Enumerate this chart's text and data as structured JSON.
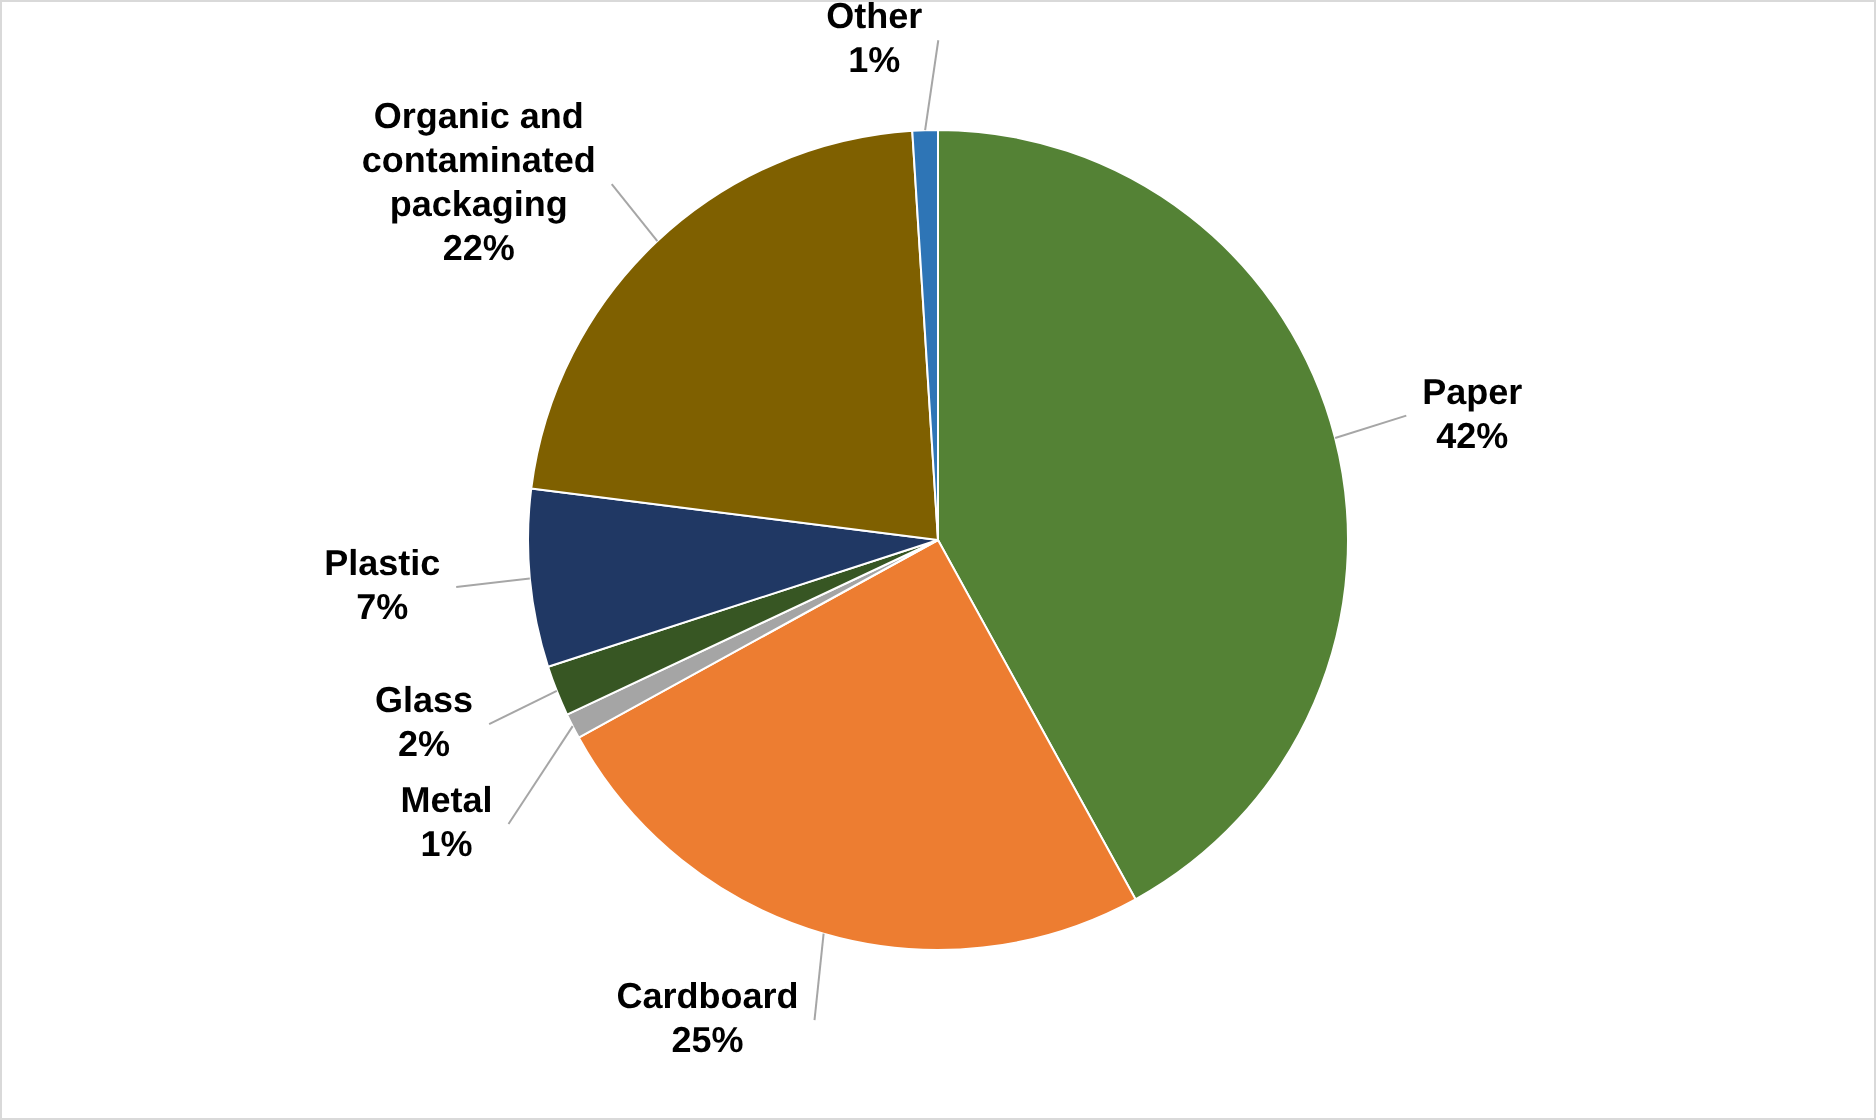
{
  "chart_data": {
    "type": "pie",
    "categories": [
      "Paper",
      "Cardboard",
      "Metal",
      "Glass",
      "Plastic",
      "Organic and contaminated packaging",
      "Other"
    ],
    "values": [
      42,
      25,
      1,
      2,
      7,
      22,
      1
    ],
    "value_labels": [
      "42%",
      "25%",
      "1%",
      "2%",
      "7%",
      "22%",
      "1%"
    ],
    "colors": [
      "#548235",
      "#ed7d31",
      "#a5a5a5",
      "#375623",
      "#203864",
      "#7f6000",
      "#2e75b6"
    ],
    "legend": false
  }
}
